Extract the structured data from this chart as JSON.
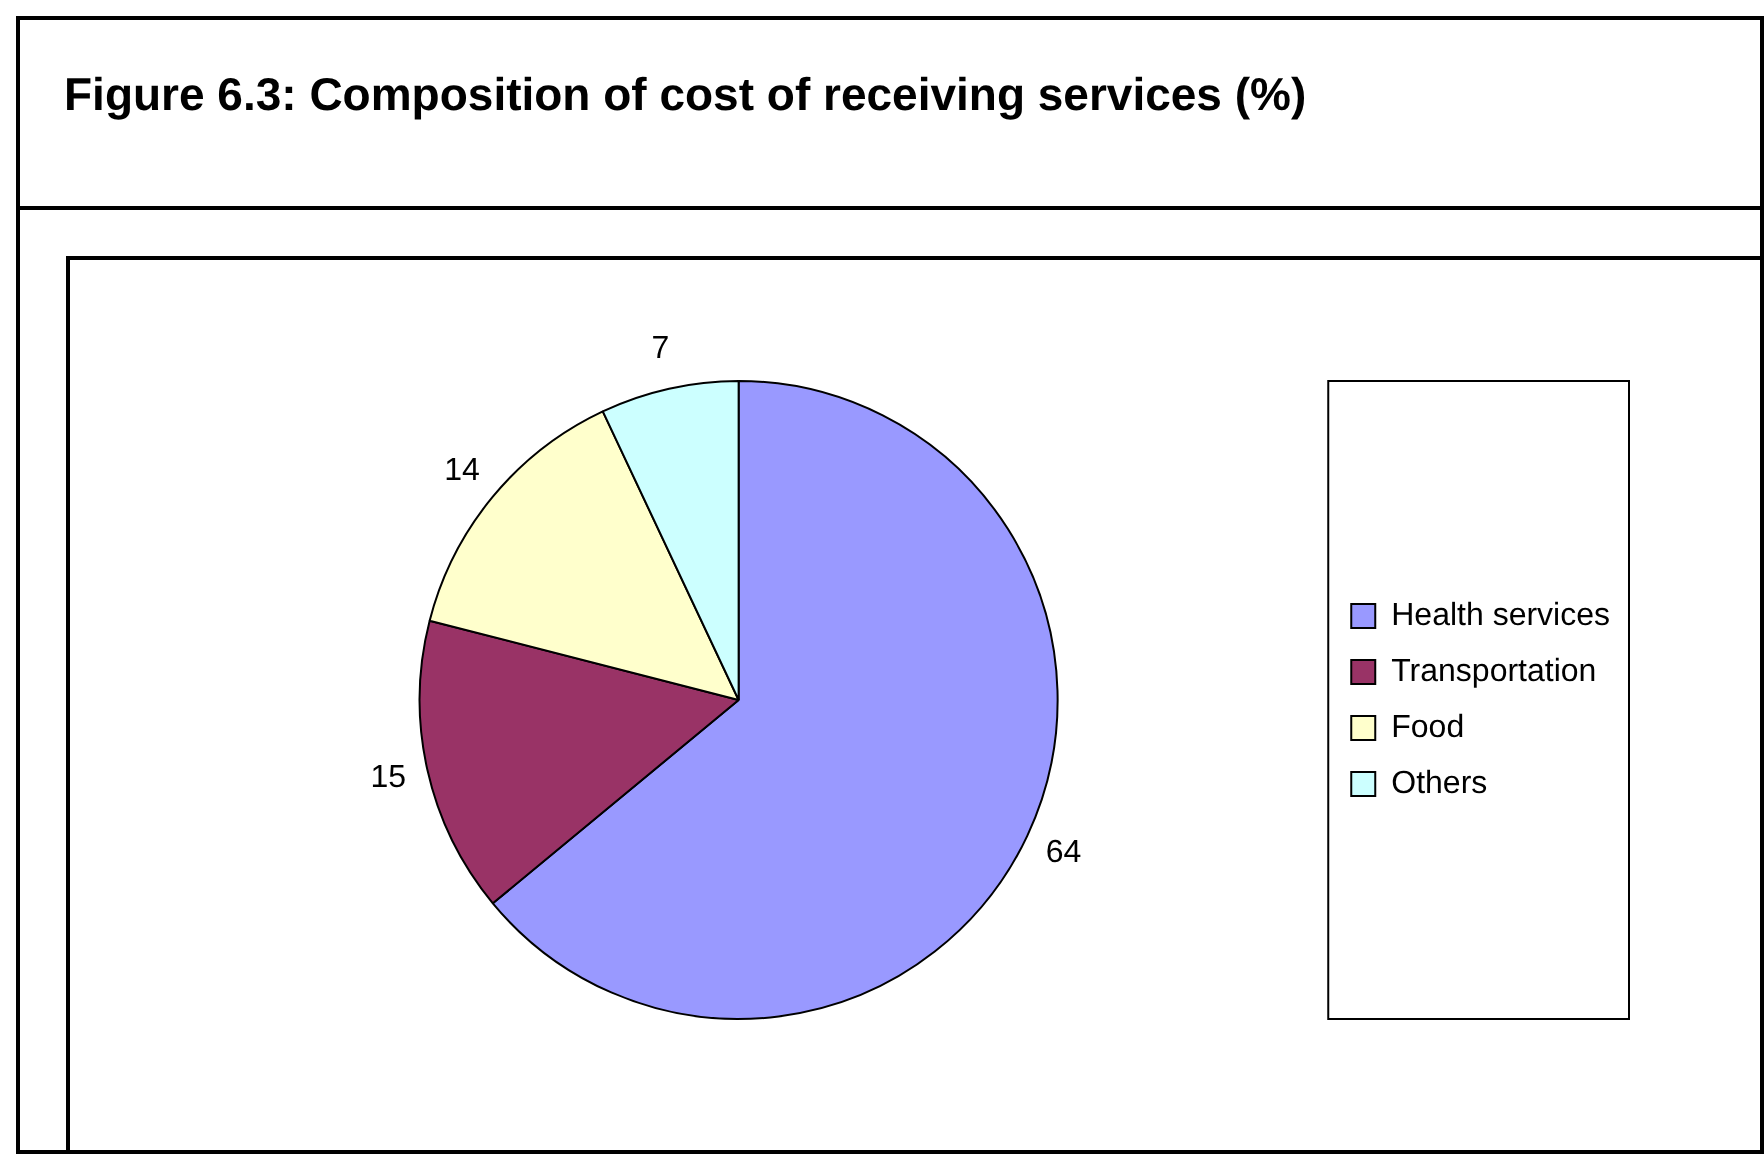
{
  "chart_data": {
    "type": "pie",
    "title": "Figure 6.3: Composition of cost of receiving services (%)",
    "categories": [
      "Health services",
      "Transportation",
      "Food",
      "Others"
    ],
    "values": [
      64,
      15,
      14,
      7
    ],
    "colors": [
      "#9999ff",
      "#993366",
      "#ffffcc",
      "#ccffff"
    ],
    "data_labels": true,
    "legend": "right"
  }
}
